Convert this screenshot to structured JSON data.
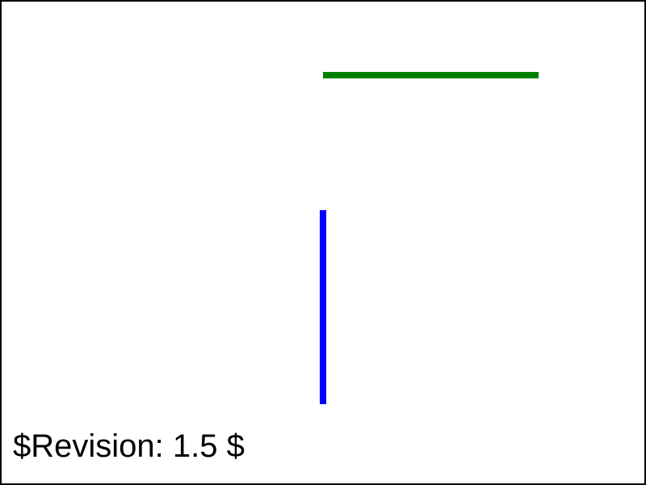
{
  "footer": {
    "revision_text": "$Revision: 1.5 $"
  },
  "colors": {
    "background": "#ffffff",
    "frame_border": "#000000",
    "horizontal_line": "#008000",
    "vertical_line": "#0000ff",
    "text": "#000000"
  }
}
